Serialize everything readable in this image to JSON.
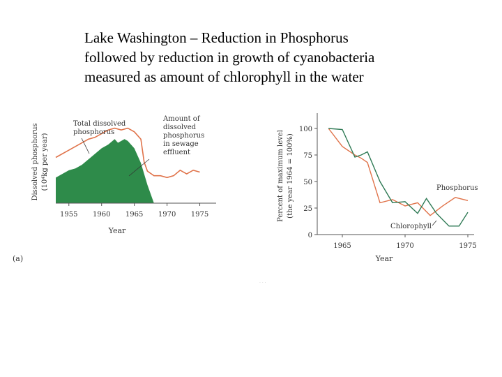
{
  "slide": {
    "title_lines": [
      "Lake Washington – Reduction in Phosphorus",
      "followed by reduction in growth of cyanobacteria",
      "measured as amount of chlorophyll in the water"
    ]
  },
  "colors": {
    "phosphorus": "#e0734a",
    "sewage_fill": "#2e8b4a",
    "chlorophyll": "#2f7a55",
    "axis": "#555555"
  },
  "chart_data": [
    {
      "type": "area",
      "panel_label": "(a)",
      "xlabel": "Year",
      "ylabel_line1": "Dissolved phosphorus",
      "ylabel_line2": "(10⁴kg per year)",
      "xlim": [
        1953,
        1977.5
      ],
      "ylim": [
        0,
        100
      ],
      "x_ticks": [
        "1955",
        "1960",
        "1965",
        "1970",
        "1975"
      ],
      "annotations": {
        "total_dissolved": [
          "Total dissolved",
          "phosphorus"
        ],
        "sewage": [
          "Amount of",
          "dissolved",
          "phosphorus",
          "in sewage",
          "effluent"
        ]
      },
      "series": [
        {
          "name": "Total dissolved phosphorus",
          "style": "line",
          "x": [
            1953,
            1955,
            1957,
            1958,
            1959,
            1960,
            1961,
            1962,
            1963,
            1964,
            1965,
            1966,
            1966.5,
            1967,
            1968,
            1969,
            1970,
            1971,
            1972,
            1973,
            1974,
            1975
          ],
          "y": [
            50,
            58,
            66,
            70,
            72,
            76,
            80,
            82,
            80,
            82,
            78,
            70,
            45,
            35,
            30,
            30,
            28,
            30,
            36,
            32,
            36,
            34
          ]
        },
        {
          "name": "Amount of dissolved phosphorus in sewage effluent",
          "style": "filled-area",
          "x": [
            1953,
            1954,
            1955,
            1956,
            1957,
            1958,
            1959,
            1960,
            1961,
            1962,
            1962.5,
            1963,
            1963.5,
            1964,
            1965,
            1966,
            1967,
            1968
          ],
          "y": [
            28,
            32,
            36,
            38,
            42,
            48,
            54,
            60,
            64,
            70,
            66,
            68,
            70,
            68,
            60,
            44,
            20,
            0
          ]
        }
      ]
    },
    {
      "type": "line",
      "panel_label": "",
      "xlabel": "Year",
      "ylabel_line1": "Percent of maximum level",
      "ylabel_line2": "(the year 1964 = 100%)",
      "xlim": [
        1963,
        1975.5
      ],
      "ylim": [
        0,
        100
      ],
      "x_ticks": [
        "1965",
        "1970",
        "1975"
      ],
      "y_ticks": [
        "0",
        "25",
        "50",
        "75",
        "100"
      ],
      "series": [
        {
          "name": "Phosphorus",
          "x": [
            1963.9,
            1965,
            1966,
            1966.5,
            1967,
            1968,
            1969,
            1970,
            1971,
            1972,
            1973,
            1974,
            1975
          ],
          "y": [
            100,
            83,
            75,
            72,
            68,
            30,
            33,
            27,
            30,
            18,
            27,
            35,
            32
          ]
        },
        {
          "name": "Chlorophyll",
          "x": [
            1963.9,
            1965,
            1966,
            1966.5,
            1967,
            1968,
            1969,
            1970,
            1971,
            1971.7,
            1972.5,
            1973.5,
            1974.3,
            1975
          ],
          "y": [
            100,
            99,
            73,
            75,
            78,
            50,
            30,
            31,
            20,
            34,
            20,
            8,
            8,
            21
          ]
        }
      ]
    }
  ]
}
